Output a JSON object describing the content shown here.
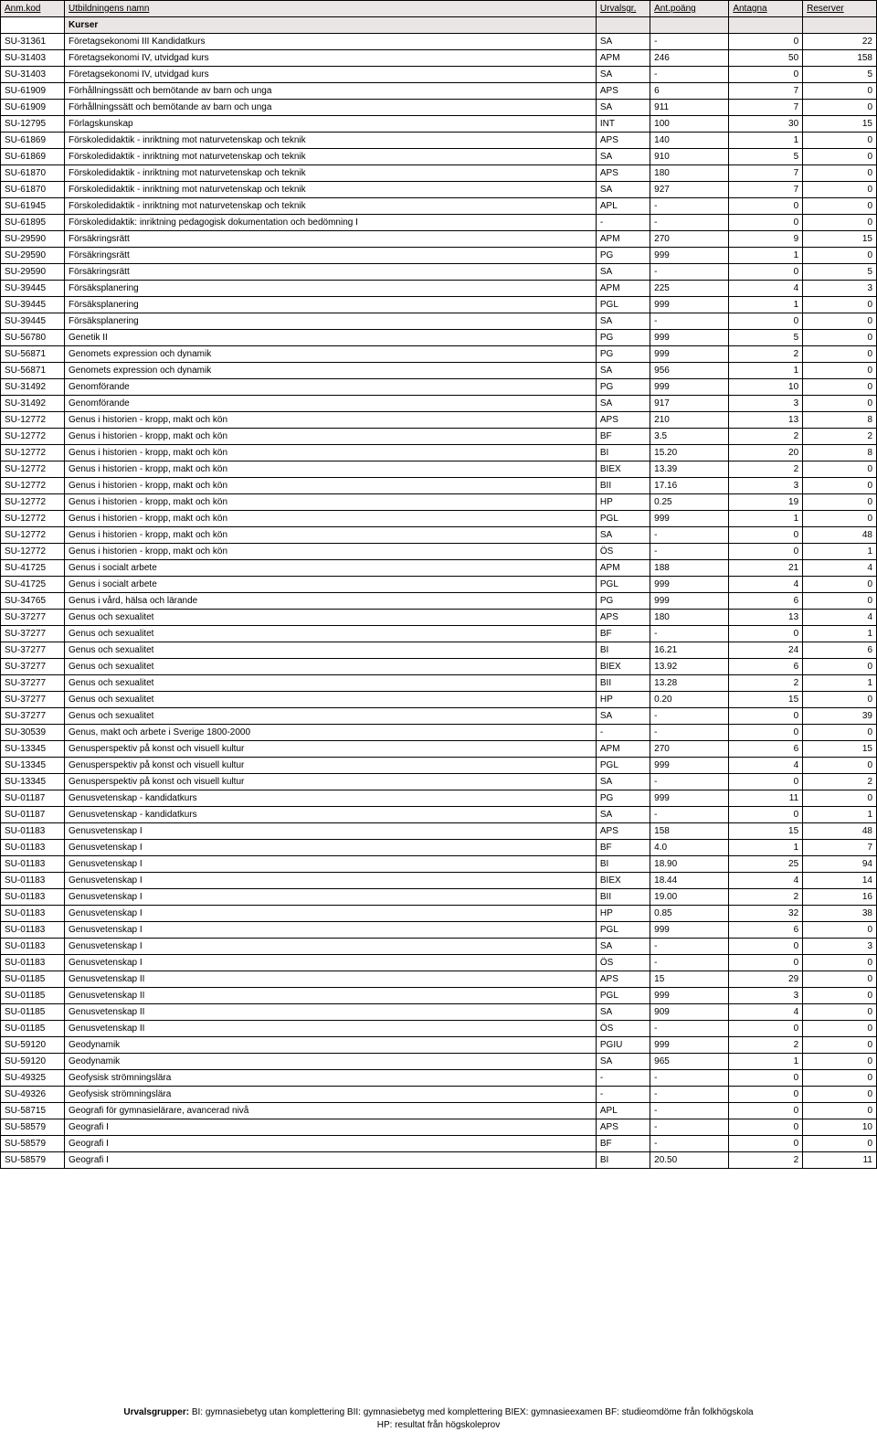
{
  "headers": {
    "code": "Anm.kod",
    "name": "Utbildningens namn",
    "urv": "Urvalsgr.",
    "pts": "Ant.poäng",
    "ant": "Antagna",
    "res": "Reserver"
  },
  "section_label": "Kurser",
  "rows": [
    {
      "code": "SU-31361",
      "name": "Företagsekonomi III Kandidatkurs",
      "urv": "SA",
      "pts": "-",
      "ant": "0",
      "res": "22"
    },
    {
      "code": "SU-31403",
      "name": "Företagsekonomi IV, utvidgad kurs",
      "urv": "APM",
      "pts": "246",
      "ant": "50",
      "res": "158"
    },
    {
      "code": "SU-31403",
      "name": "Företagsekonomi IV, utvidgad kurs",
      "urv": "SA",
      "pts": "-",
      "ant": "0",
      "res": "5"
    },
    {
      "code": "SU-61909",
      "name": "Förhållningssätt och bemötande av barn och unga",
      "urv": "APS",
      "pts": "6",
      "ant": "7",
      "res": "0"
    },
    {
      "code": "SU-61909",
      "name": "Förhållningssätt och bemötande av barn och unga",
      "urv": "SA",
      "pts": "911",
      "ant": "7",
      "res": "0"
    },
    {
      "code": "SU-12795",
      "name": "Förlagskunskap",
      "urv": "INT",
      "pts": "100",
      "ant": "30",
      "res": "15"
    },
    {
      "code": "SU-61869",
      "name": "Förskoledidaktik - inriktning mot naturvetenskap och teknik",
      "urv": "APS",
      "pts": "140",
      "ant": "1",
      "res": "0"
    },
    {
      "code": "SU-61869",
      "name": "Förskoledidaktik - inriktning mot naturvetenskap och teknik",
      "urv": "SA",
      "pts": "910",
      "ant": "5",
      "res": "0"
    },
    {
      "code": "SU-61870",
      "name": "Förskoledidaktik - inriktning mot naturvetenskap och teknik",
      "urv": "APS",
      "pts": "180",
      "ant": "7",
      "res": "0"
    },
    {
      "code": "SU-61870",
      "name": "Förskoledidaktik - inriktning mot naturvetenskap och teknik",
      "urv": "SA",
      "pts": "927",
      "ant": "7",
      "res": "0"
    },
    {
      "code": "SU-61945",
      "name": "Förskoledidaktik - inriktning mot naturvetenskap och teknik",
      "urv": "APL",
      "pts": "-",
      "ant": "0",
      "res": "0"
    },
    {
      "code": "SU-61895",
      "name": "Förskoledidaktik: inriktning pedagogisk dokumentation och bedömning I",
      "urv": "-",
      "pts": "-",
      "ant": "0",
      "res": "0"
    },
    {
      "code": "SU-29590",
      "name": "Försäkringsrätt",
      "urv": "APM",
      "pts": "270",
      "ant": "9",
      "res": "15"
    },
    {
      "code": "SU-29590",
      "name": "Försäkringsrätt",
      "urv": "PG",
      "pts": "999",
      "ant": "1",
      "res": "0"
    },
    {
      "code": "SU-29590",
      "name": "Försäkringsrätt",
      "urv": "SA",
      "pts": "-",
      "ant": "0",
      "res": "5"
    },
    {
      "code": "SU-39445",
      "name": "Försäksplanering",
      "urv": "APM",
      "pts": "225",
      "ant": "4",
      "res": "3"
    },
    {
      "code": "SU-39445",
      "name": "Försäksplanering",
      "urv": "PGL",
      "pts": "999",
      "ant": "1",
      "res": "0"
    },
    {
      "code": "SU-39445",
      "name": "Försäksplanering",
      "urv": "SA",
      "pts": "-",
      "ant": "0",
      "res": "0"
    },
    {
      "code": "SU-56780",
      "name": "Genetik II",
      "urv": "PG",
      "pts": "999",
      "ant": "5",
      "res": "0"
    },
    {
      "code": "SU-56871",
      "name": "Genomets expression och dynamik",
      "urv": "PG",
      "pts": "999",
      "ant": "2",
      "res": "0"
    },
    {
      "code": "SU-56871",
      "name": "Genomets expression och dynamik",
      "urv": "SA",
      "pts": "956",
      "ant": "1",
      "res": "0"
    },
    {
      "code": "SU-31492",
      "name": "Genomförande",
      "urv": "PG",
      "pts": "999",
      "ant": "10",
      "res": "0"
    },
    {
      "code": "SU-31492",
      "name": "Genomförande",
      "urv": "SA",
      "pts": "917",
      "ant": "3",
      "res": "0"
    },
    {
      "code": "SU-12772",
      "name": "Genus i historien - kropp, makt och kön",
      "urv": "APS",
      "pts": "210",
      "ant": "13",
      "res": "8"
    },
    {
      "code": "SU-12772",
      "name": "Genus i historien - kropp, makt och kön",
      "urv": "BF",
      "pts": "3.5",
      "ant": "2",
      "res": "2"
    },
    {
      "code": "SU-12772",
      "name": "Genus i historien - kropp, makt och kön",
      "urv": "BI",
      "pts": "15.20",
      "ant": "20",
      "res": "8"
    },
    {
      "code": "SU-12772",
      "name": "Genus i historien - kropp, makt och kön",
      "urv": "BIEX",
      "pts": "13.39",
      "ant": "2",
      "res": "0"
    },
    {
      "code": "SU-12772",
      "name": "Genus i historien - kropp, makt och kön",
      "urv": "BII",
      "pts": "17.16",
      "ant": "3",
      "res": "0"
    },
    {
      "code": "SU-12772",
      "name": "Genus i historien - kropp, makt och kön",
      "urv": "HP",
      "pts": "0.25",
      "ant": "19",
      "res": "0"
    },
    {
      "code": "SU-12772",
      "name": "Genus i historien - kropp, makt och kön",
      "urv": "PGL",
      "pts": "999",
      "ant": "1",
      "res": "0"
    },
    {
      "code": "SU-12772",
      "name": "Genus i historien - kropp, makt och kön",
      "urv": "SA",
      "pts": "-",
      "ant": "0",
      "res": "48"
    },
    {
      "code": "SU-12772",
      "name": "Genus i historien - kropp, makt och kön",
      "urv": "ÖS",
      "pts": "-",
      "ant": "0",
      "res": "1"
    },
    {
      "code": "SU-41725",
      "name": "Genus i socialt arbete",
      "urv": "APM",
      "pts": "188",
      "ant": "21",
      "res": "4"
    },
    {
      "code": "SU-41725",
      "name": "Genus i socialt arbete",
      "urv": "PGL",
      "pts": "999",
      "ant": "4",
      "res": "0"
    },
    {
      "code": "SU-34765",
      "name": "Genus i vård, hälsa och lärande",
      "urv": "PG",
      "pts": "999",
      "ant": "6",
      "res": "0"
    },
    {
      "code": "SU-37277",
      "name": "Genus och sexualitet",
      "urv": "APS",
      "pts": "180",
      "ant": "13",
      "res": "4"
    },
    {
      "code": "SU-37277",
      "name": "Genus och sexualitet",
      "urv": "BF",
      "pts": "-",
      "ant": "0",
      "res": "1"
    },
    {
      "code": "SU-37277",
      "name": "Genus och sexualitet",
      "urv": "BI",
      "pts": "16.21",
      "ant": "24",
      "res": "6"
    },
    {
      "code": "SU-37277",
      "name": "Genus och sexualitet",
      "urv": "BIEX",
      "pts": "13.92",
      "ant": "6",
      "res": "0"
    },
    {
      "code": "SU-37277",
      "name": "Genus och sexualitet",
      "urv": "BII",
      "pts": "13.28",
      "ant": "2",
      "res": "1"
    },
    {
      "code": "SU-37277",
      "name": "Genus och sexualitet",
      "urv": "HP",
      "pts": "0.20",
      "ant": "15",
      "res": "0"
    },
    {
      "code": "SU-37277",
      "name": "Genus och sexualitet",
      "urv": "SA",
      "pts": "-",
      "ant": "0",
      "res": "39"
    },
    {
      "code": "SU-30539",
      "name": "Genus, makt och arbete i Sverige 1800-2000",
      "urv": "-",
      "pts": "-",
      "ant": "0",
      "res": "0"
    },
    {
      "code": "SU-13345",
      "name": "Genusperspektiv på konst och visuell kultur",
      "urv": "APM",
      "pts": "270",
      "ant": "6",
      "res": "15"
    },
    {
      "code": "SU-13345",
      "name": "Genusperspektiv på konst och visuell kultur",
      "urv": "PGL",
      "pts": "999",
      "ant": "4",
      "res": "0"
    },
    {
      "code": "SU-13345",
      "name": "Genusperspektiv på konst och visuell kultur",
      "urv": "SA",
      "pts": "-",
      "ant": "0",
      "res": "2"
    },
    {
      "code": "SU-01187",
      "name": "Genusvetenskap - kandidatkurs",
      "urv": "PG",
      "pts": "999",
      "ant": "11",
      "res": "0"
    },
    {
      "code": "SU-01187",
      "name": "Genusvetenskap - kandidatkurs",
      "urv": "SA",
      "pts": "-",
      "ant": "0",
      "res": "1"
    },
    {
      "code": "SU-01183",
      "name": "Genusvetenskap I",
      "urv": "APS",
      "pts": "158",
      "ant": "15",
      "res": "48"
    },
    {
      "code": "SU-01183",
      "name": "Genusvetenskap I",
      "urv": "BF",
      "pts": "4.0",
      "ant": "1",
      "res": "7"
    },
    {
      "code": "SU-01183",
      "name": "Genusvetenskap I",
      "urv": "BI",
      "pts": "18.90",
      "ant": "25",
      "res": "94"
    },
    {
      "code": "SU-01183",
      "name": "Genusvetenskap I",
      "urv": "BIEX",
      "pts": "18.44",
      "ant": "4",
      "res": "14"
    },
    {
      "code": "SU-01183",
      "name": "Genusvetenskap I",
      "urv": "BII",
      "pts": "19.00",
      "ant": "2",
      "res": "16"
    },
    {
      "code": "SU-01183",
      "name": "Genusvetenskap I",
      "urv": "HP",
      "pts": "0.85",
      "ant": "32",
      "res": "38"
    },
    {
      "code": "SU-01183",
      "name": "Genusvetenskap I",
      "urv": "PGL",
      "pts": "999",
      "ant": "6",
      "res": "0"
    },
    {
      "code": "SU-01183",
      "name": "Genusvetenskap I",
      "urv": "SA",
      "pts": "-",
      "ant": "0",
      "res": "3"
    },
    {
      "code": "SU-01183",
      "name": "Genusvetenskap I",
      "urv": "ÖS",
      "pts": "-",
      "ant": "0",
      "res": "0"
    },
    {
      "code": "SU-01185",
      "name": "Genusvetenskap II",
      "urv": "APS",
      "pts": "15",
      "ant": "29",
      "res": "0"
    },
    {
      "code": "SU-01185",
      "name": "Genusvetenskap II",
      "urv": "PGL",
      "pts": "999",
      "ant": "3",
      "res": "0"
    },
    {
      "code": "SU-01185",
      "name": "Genusvetenskap II",
      "urv": "SA",
      "pts": "909",
      "ant": "4",
      "res": "0"
    },
    {
      "code": "SU-01185",
      "name": "Genusvetenskap II",
      "urv": "ÖS",
      "pts": "-",
      "ant": "0",
      "res": "0"
    },
    {
      "code": "SU-59120",
      "name": "Geodynamik",
      "urv": "PGIU",
      "pts": "999",
      "ant": "2",
      "res": "0"
    },
    {
      "code": "SU-59120",
      "name": "Geodynamik",
      "urv": "SA",
      "pts": "965",
      "ant": "1",
      "res": "0"
    },
    {
      "code": "SU-49325",
      "name": "Geofysisk strömningslära",
      "urv": "-",
      "pts": "-",
      "ant": "0",
      "res": "0"
    },
    {
      "code": "SU-49326",
      "name": "Geofysisk strömningslära",
      "urv": "-",
      "pts": "-",
      "ant": "0",
      "res": "0"
    },
    {
      "code": "SU-58715",
      "name": "Geografi för gymnasielärare, avancerad nivå",
      "urv": "APL",
      "pts": "-",
      "ant": "0",
      "res": "0"
    },
    {
      "code": "SU-58579",
      "name": "Geografi I",
      "urv": "APS",
      "pts": "-",
      "ant": "0",
      "res": "10"
    },
    {
      "code": "SU-58579",
      "name": "Geografi I",
      "urv": "BF",
      "pts": "-",
      "ant": "0",
      "res": "0"
    },
    {
      "code": "SU-58579",
      "name": "Geografi I",
      "urv": "BI",
      "pts": "20.50",
      "ant": "2",
      "res": "11"
    }
  ],
  "footer": {
    "l1_label": "Urvalsgrupper:",
    "l1_text": "  BI: gymnasiebetyg utan komplettering  BII: gymnasiebetyg med komplettering BIEX: gymnasieexamen BF: studieomdöme från folkhögskola",
    "l2_text": "HP: resultat från högskoleprov"
  }
}
